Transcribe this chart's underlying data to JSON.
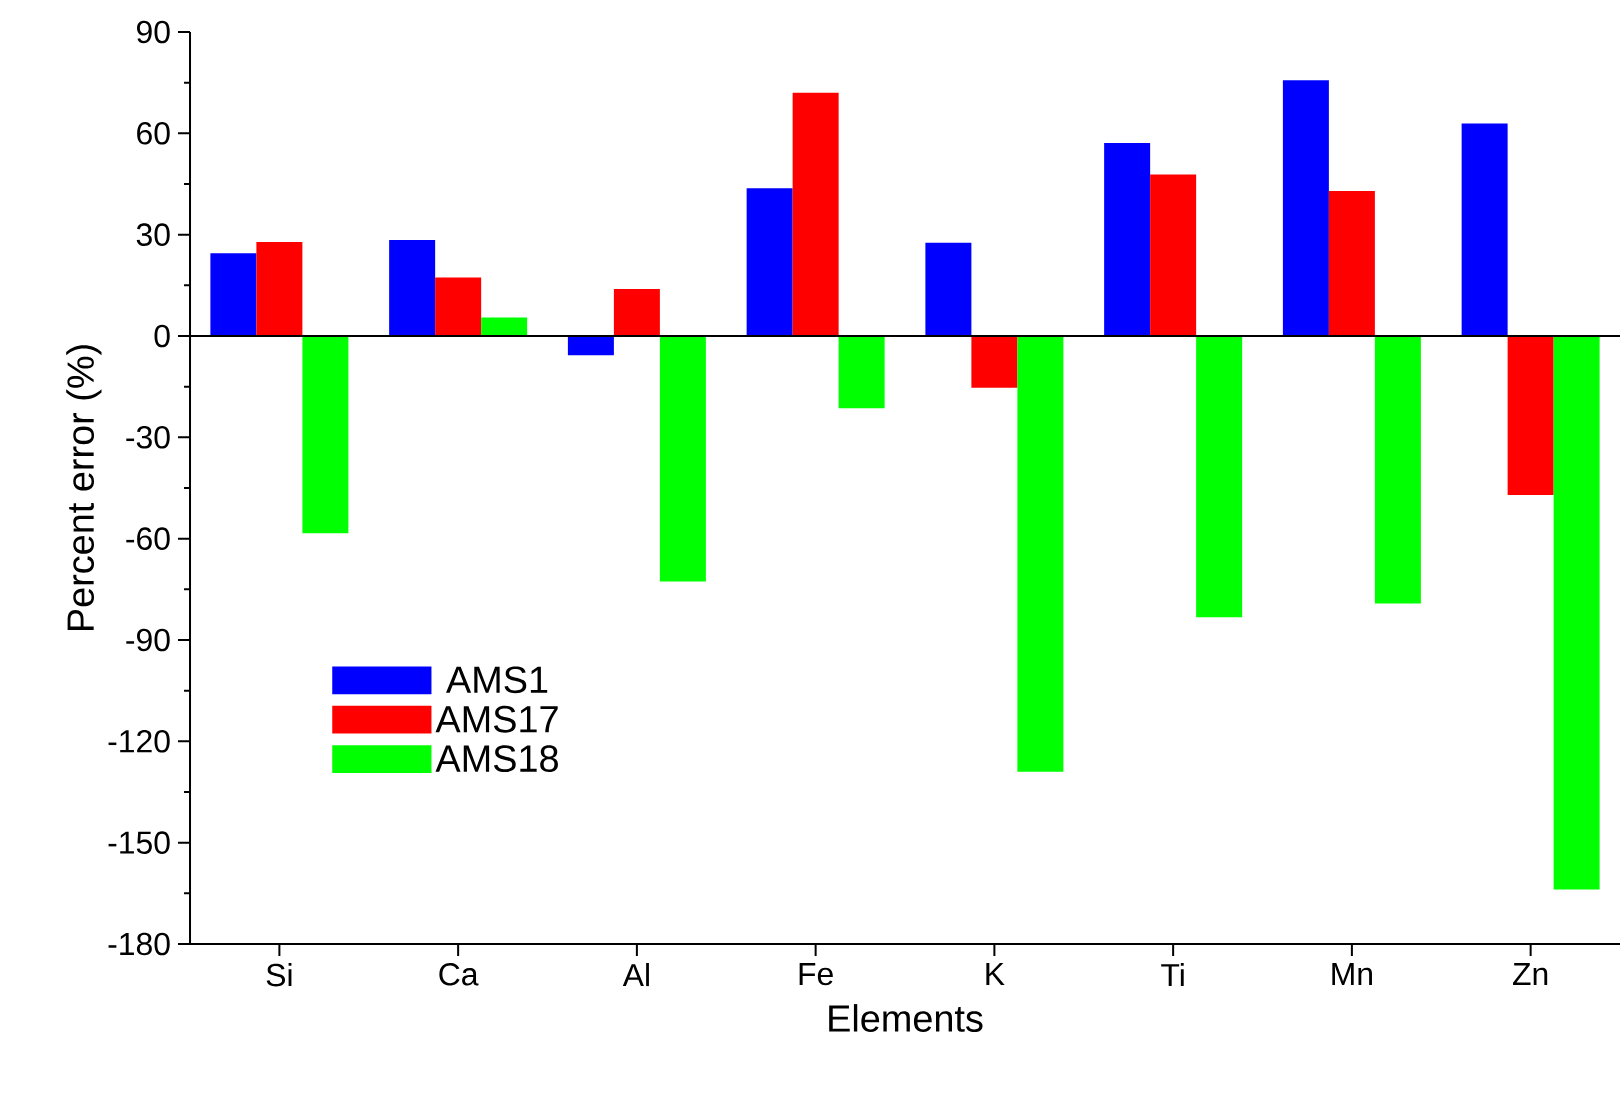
{
  "chart_data": {
    "type": "bar",
    "xlabel": "Elements",
    "ylabel": "Percent error (%)",
    "categories": [
      "Si",
      "Ca",
      "Al",
      "Fe",
      "K",
      "Ti",
      "Mn",
      "Zn"
    ],
    "series": [
      {
        "name": "AMS1",
        "color": "#0000ff",
        "values": [
          24.5,
          28.4,
          -5.7,
          43.7,
          27.6,
          57.1,
          75.7,
          62.9
        ]
      },
      {
        "name": "AMS17",
        "color": "#ff0000",
        "values": [
          27.8,
          17.3,
          13.9,
          72,
          -15.3,
          47.8,
          42.9,
          -47.1
        ]
      },
      {
        "name": "AMS18",
        "color": "#00ff00",
        "values": [
          -58.4,
          5.5,
          -72.7,
          -21.4,
          -129,
          -83.3,
          -79.2,
          -163.9
        ]
      }
    ],
    "ylim": [
      -180,
      90
    ],
    "yticks": [
      -180,
      -150,
      -120,
      -90,
      -60,
      -30,
      0,
      30,
      60,
      90
    ],
    "ref_lines": [
      {
        "axis": "y",
        "value": 0,
        "color": "#000000"
      }
    ],
    "legend": "left",
    "grid": false
  }
}
